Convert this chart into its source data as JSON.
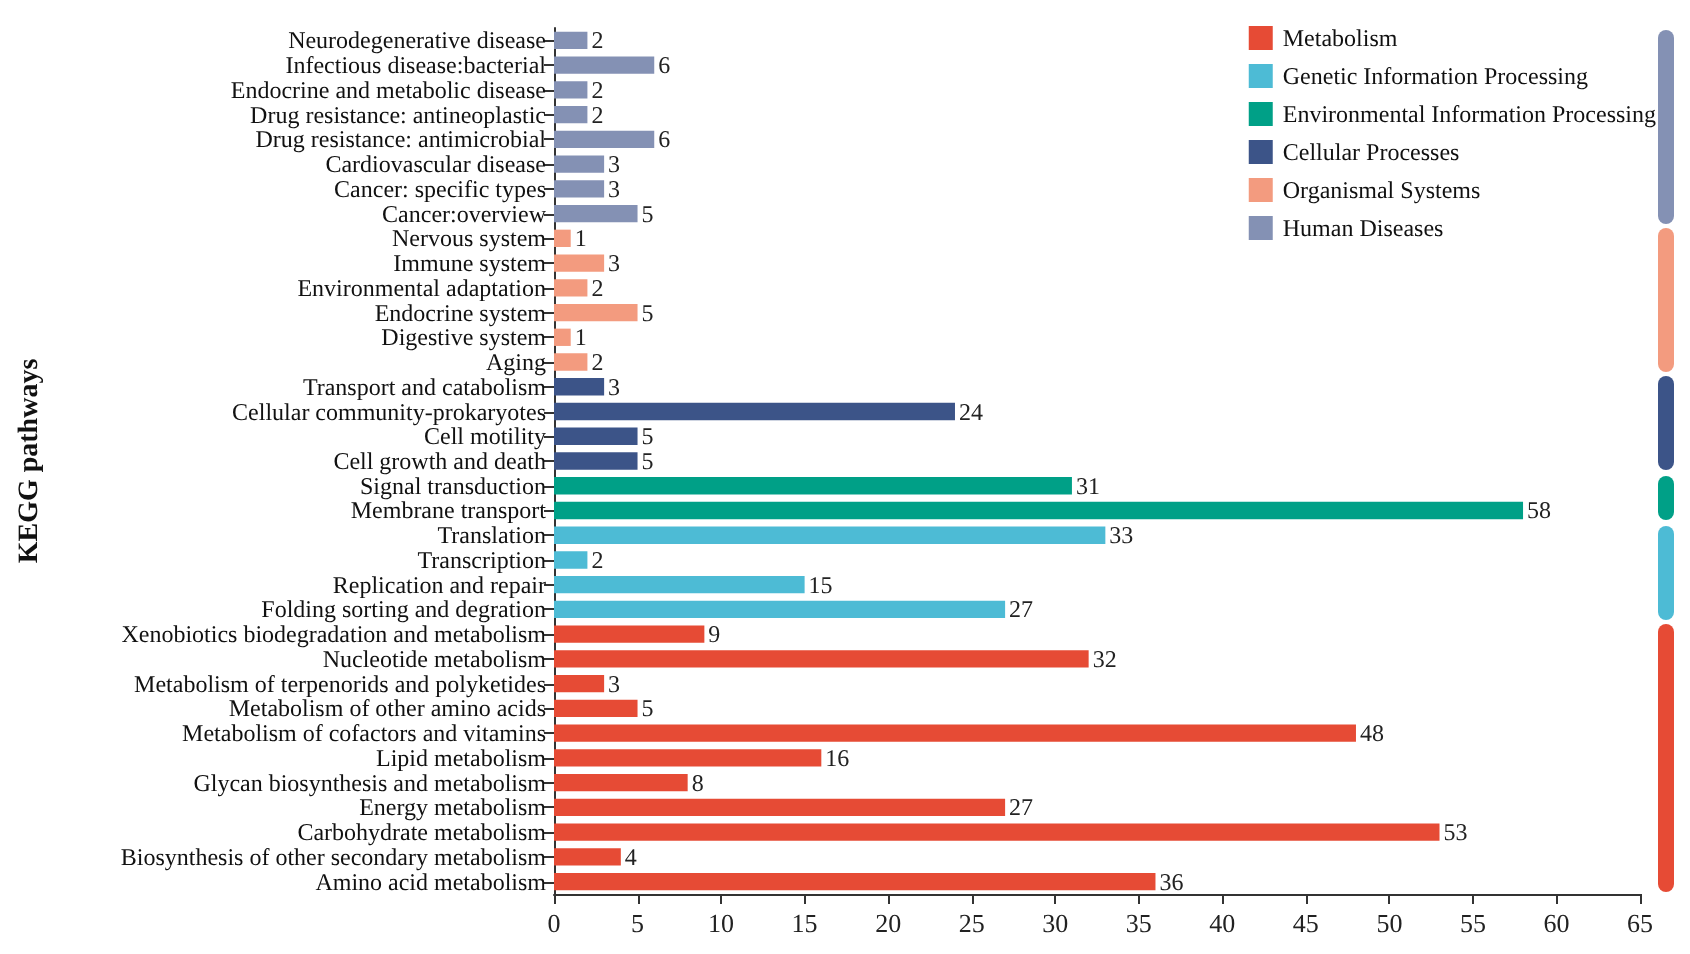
{
  "chart_data": {
    "type": "bar",
    "orientation": "horizontal",
    "stacked": true,
    "ylabel": "KEGG pathways",
    "categories": [
      "Neurodegenerative disease",
      "Infectious disease:bacterial",
      "Endocrine and metabolic disease",
      "Drug resistance: antineoplastic",
      "Drug resistance: antimicrobial",
      "Cardiovascular disease",
      "Cancer: specific types",
      "Cancer:overview",
      "Nervous system",
      "Immune system",
      "Environmental adaptation",
      "Endocrine system",
      "Digestive system",
      "Aging",
      "Transport and catabolism",
      "Cellular community-prokaryotes",
      "Cell motility",
      "Cell growth and death",
      "Signal transduction",
      "Membrane transport",
      "Translation",
      "Transcription",
      "Replication and repair",
      "Folding sorting and degration",
      "Xenobiotics biodegradation and metabolism",
      "Nucleotide metabolism",
      "Metabolism of terpenorids and polyketides",
      "Metabolism of other amino acids",
      "Metabolism of cofactors and vitamins",
      "Lipid metabolism",
      "Glycan biosynthesis and metabolism",
      "Energy metabolism",
      "Carbohydrate metabolism",
      "Biosynthesis of other secondary metabolism",
      "Amino acid metabolism"
    ],
    "series": [
      {
        "name": "Metabolism",
        "color": "#e64b35",
        "values": [
          null,
          null,
          null,
          null,
          null,
          null,
          null,
          null,
          null,
          null,
          null,
          null,
          null,
          null,
          null,
          null,
          null,
          null,
          null,
          null,
          null,
          null,
          null,
          null,
          9,
          32,
          3,
          5,
          48,
          16,
          8,
          27,
          53,
          4,
          36
        ]
      },
      {
        "name": "Genetic Information Processing",
        "color": "#4dbbd5",
        "values": [
          null,
          null,
          null,
          null,
          null,
          null,
          null,
          null,
          null,
          null,
          null,
          null,
          null,
          null,
          null,
          null,
          null,
          null,
          null,
          null,
          33,
          2,
          15,
          27,
          null,
          null,
          null,
          null,
          null,
          null,
          null,
          null,
          null,
          null,
          null
        ]
      },
      {
        "name": "Environmental Information Processing",
        "color": "#00a087",
        "values": [
          null,
          null,
          null,
          null,
          null,
          null,
          null,
          null,
          null,
          null,
          null,
          null,
          null,
          null,
          null,
          null,
          null,
          null,
          31,
          58,
          null,
          null,
          null,
          null,
          null,
          null,
          null,
          null,
          null,
          null,
          null,
          null,
          null,
          null,
          null
        ]
      },
      {
        "name": "Cellular Processes",
        "color": "#3c5488",
        "values": [
          null,
          null,
          null,
          null,
          null,
          null,
          null,
          null,
          null,
          null,
          null,
          null,
          null,
          null,
          3,
          24,
          5,
          5,
          null,
          null,
          null,
          null,
          null,
          null,
          null,
          null,
          null,
          null,
          null,
          null,
          null,
          null,
          null,
          null,
          null
        ]
      },
      {
        "name": "Organismal Systems",
        "color": "#f39b7f",
        "values": [
          null,
          null,
          null,
          null,
          null,
          null,
          null,
          null,
          1,
          3,
          2,
          5,
          1,
          2,
          null,
          null,
          null,
          null,
          null,
          null,
          null,
          null,
          null,
          null,
          null,
          null,
          null,
          null,
          null,
          null,
          null,
          null,
          null,
          null,
          null
        ]
      },
      {
        "name": "Human Diseases",
        "color": "#8491b4",
        "values": [
          2,
          6,
          2,
          2,
          6,
          3,
          3,
          5,
          null,
          null,
          null,
          null,
          null,
          null,
          null,
          null,
          null,
          null,
          null,
          null,
          null,
          null,
          null,
          null,
          null,
          null,
          null,
          null,
          null,
          null,
          null,
          null,
          null,
          null,
          null
        ]
      }
    ],
    "xlim": [
      0,
      65
    ],
    "xticks": [
      0,
      5,
      10,
      15,
      20,
      25,
      30,
      35,
      40,
      45,
      50,
      55,
      60,
      65
    ],
    "data_labels": true,
    "grid": false,
    "legend": "top right"
  }
}
